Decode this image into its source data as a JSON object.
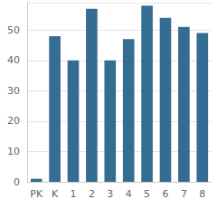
{
  "chart_data": {
    "type": "bar",
    "categories": [
      "PK",
      "K",
      "1",
      "2",
      "3",
      "4",
      "5",
      "6",
      "7",
      "8"
    ],
    "values": [
      1,
      48,
      40,
      57,
      40,
      47,
      58,
      54,
      51,
      49
    ],
    "color": "#356c91",
    "ylim": [
      0,
      59
    ],
    "yticks": [
      0,
      10,
      20,
      30,
      40,
      50
    ],
    "grid": true
  }
}
